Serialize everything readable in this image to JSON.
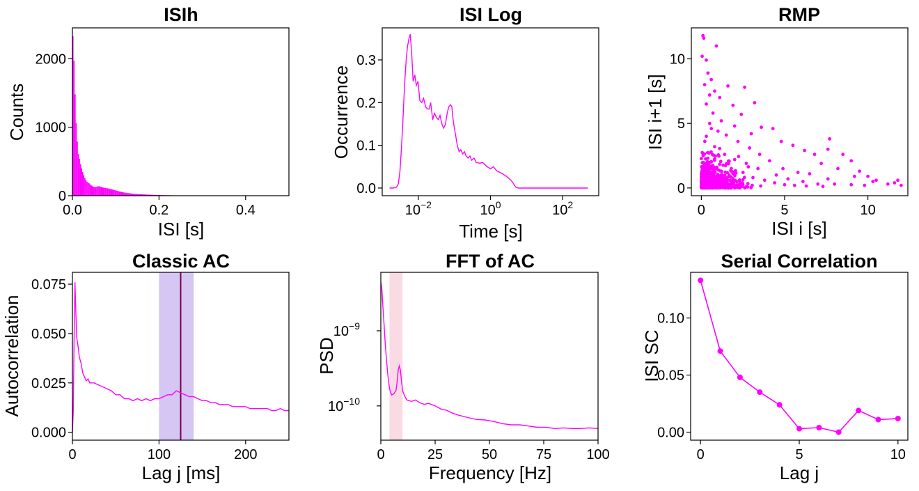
{
  "colors": {
    "magenta": "#ff00ff",
    "band_purple": "#c7b3ef",
    "band_line": "#7a0050",
    "band_pink": "#f9d3de"
  },
  "chart_data": [
    {
      "type": "bar",
      "title": "ISIh",
      "xlabel": "ISI [s]",
      "ylabel": "Counts",
      "xlim": [
        0,
        0.5
      ],
      "ylim": [
        0,
        2450
      ],
      "xticks": [
        "0.0",
        "0.2",
        "0.4"
      ],
      "yticks": [
        "0",
        "1000",
        "2000"
      ],
      "bin_width": 0.0025,
      "values": [
        2330,
        1970,
        1480,
        1060,
        790,
        610,
        540,
        460,
        400,
        345,
        300,
        260,
        230,
        205,
        190,
        180,
        165,
        150,
        140,
        130,
        128,
        125,
        130,
        135,
        140,
        132,
        128,
        122,
        118,
        115,
        112,
        110,
        108,
        105,
        100,
        96,
        92,
        88,
        84,
        80,
        75,
        70,
        66,
        62,
        58,
        55,
        52,
        48,
        45,
        43,
        40,
        38,
        36,
        34,
        32,
        30,
        28,
        27,
        26,
        25,
        24,
        23,
        22,
        21,
        20,
        19,
        19,
        18,
        17,
        16,
        16,
        15,
        14,
        14,
        13,
        12,
        12,
        11,
        11,
        10,
        10,
        9,
        9,
        9,
        8,
        8,
        8,
        7,
        7,
        7,
        6,
        6,
        6,
        6,
        5,
        5,
        5,
        5,
        5,
        4,
        4,
        4,
        4,
        4,
        4,
        3,
        3,
        3,
        3,
        3,
        3,
        3,
        3,
        3,
        2,
        2,
        2,
        2,
        2,
        2,
        2,
        2,
        2,
        2,
        2,
        2,
        2,
        2,
        2,
        2,
        2,
        2,
        2,
        2,
        2,
        2,
        2,
        2,
        2,
        2,
        2,
        2,
        2,
        2,
        2,
        2,
        2,
        2,
        2,
        2,
        2,
        2,
        2,
        2,
        2,
        2,
        2,
        2,
        2,
        2,
        2,
        2,
        2,
        2,
        2,
        2,
        2,
        2,
        2,
        2,
        2,
        2,
        2,
        2,
        2,
        2,
        2,
        2,
        2,
        2,
        2,
        2,
        2,
        2,
        2,
        2,
        2,
        2,
        2,
        2,
        2,
        2,
        2,
        2,
        2,
        2,
        2,
        2,
        2,
        2
      ]
    },
    {
      "type": "line",
      "title": "ISI Log",
      "xlabel": "Time [s]",
      "ylabel": "Occurrence",
      "xscale": "log",
      "xlim": [
        0.001,
        1000
      ],
      "ylim": [
        -0.018,
        0.375
      ],
      "xticks": [
        {
          "v": 0.01,
          "label": "10",
          "exp": "−2"
        },
        {
          "v": 1,
          "label": "10",
          "exp": "0"
        },
        {
          "v": 100,
          "label": "10",
          "exp": "2"
        }
      ],
      "yticks": [
        "0.0",
        "0.1",
        "0.2",
        "0.3"
      ],
      "x": [
        0.0016,
        0.002,
        0.0025,
        0.0028,
        0.0031,
        0.0034,
        0.0037,
        0.004,
        0.0043,
        0.0046,
        0.005,
        0.0055,
        0.006,
        0.0066,
        0.0072,
        0.008,
        0.0088,
        0.0098,
        0.011,
        0.0125,
        0.014,
        0.016,
        0.018,
        0.02,
        0.022,
        0.025,
        0.028,
        0.032,
        0.036,
        0.04,
        0.045,
        0.05,
        0.056,
        0.063,
        0.07,
        0.078,
        0.085,
        0.092,
        0.1,
        0.11,
        0.12,
        0.135,
        0.15,
        0.17,
        0.19,
        0.21,
        0.24,
        0.27,
        0.3,
        0.35,
        0.4,
        0.5,
        0.6,
        0.8,
        1.0,
        1.2,
        1.5,
        2.0,
        2.5,
        3.0,
        3.5,
        4.0,
        4.5,
        5.0,
        6.0,
        7.0,
        10.0,
        20,
        50,
        100,
        200,
        500
      ],
      "y": [
        0.0,
        0.0,
        0.002,
        0.01,
        0.04,
        0.09,
        0.15,
        0.21,
        0.26,
        0.3,
        0.33,
        0.35,
        0.36,
        0.31,
        0.25,
        0.265,
        0.24,
        0.25,
        0.205,
        0.2,
        0.21,
        0.19,
        0.185,
        0.185,
        0.2,
        0.16,
        0.175,
        0.165,
        0.16,
        0.17,
        0.15,
        0.14,
        0.148,
        0.175,
        0.19,
        0.195,
        0.19,
        0.16,
        0.14,
        0.12,
        0.1,
        0.085,
        0.09,
        0.08,
        0.085,
        0.075,
        0.07,
        0.075,
        0.065,
        0.07,
        0.06,
        0.058,
        0.06,
        0.05,
        0.045,
        0.05,
        0.04,
        0.035,
        0.03,
        0.025,
        0.02,
        0.015,
        0.008,
        0.002,
        0.0,
        0.0,
        0.0,
        0.0,
        0.0,
        0.0,
        0.0,
        0.0
      ]
    },
    {
      "type": "scatter",
      "title": "RMP",
      "xlabel": "ISI i [s]",
      "ylabel": "ISI i+1 [s]",
      "xlim": [
        -0.6,
        12.4
      ],
      "ylim": [
        -0.6,
        12.4
      ],
      "xticks": [
        "0",
        "5",
        "10"
      ],
      "yticks": [
        "0",
        "5",
        "10"
      ],
      "points": [
        [
          0.1,
          11.8
        ],
        [
          0.15,
          11.6
        ],
        [
          0.9,
          11.0
        ],
        [
          0.05,
          10.2
        ],
        [
          0.3,
          9.9
        ],
        [
          0.4,
          8.9
        ],
        [
          0.6,
          8.4
        ],
        [
          0.2,
          8.0
        ],
        [
          1.6,
          7.9
        ],
        [
          2.6,
          7.8
        ],
        [
          0.8,
          7.5
        ],
        [
          3.2,
          6.6
        ],
        [
          1.1,
          7.0
        ],
        [
          0.5,
          7.2
        ],
        [
          1.9,
          6.4
        ],
        [
          0.3,
          6.5
        ],
        [
          4.3,
          4.6
        ],
        [
          3.6,
          4.7
        ],
        [
          7.7,
          3.8
        ],
        [
          7.6,
          3.0
        ],
        [
          9.0,
          2.1
        ],
        [
          8.5,
          2.6
        ],
        [
          2.4,
          5.7
        ],
        [
          0.7,
          5.8
        ],
        [
          1.2,
          5.2
        ],
        [
          0.5,
          5.0
        ],
        [
          2.0,
          4.8
        ],
        [
          3.0,
          4.2
        ],
        [
          4.8,
          3.6
        ],
        [
          5.5,
          3.3
        ],
        [
          6.2,
          2.9
        ],
        [
          6.8,
          2.6
        ],
        [
          7.2,
          1.9
        ],
        [
          8.2,
          1.5
        ],
        [
          9.5,
          1.3
        ],
        [
          10.0,
          0.9
        ],
        [
          10.5,
          0.6
        ],
        [
          11.2,
          0.3
        ],
        [
          11.6,
          0.4
        ],
        [
          11.8,
          0.6
        ],
        [
          10.3,
          0.5
        ],
        [
          9.2,
          0.9
        ],
        [
          7.6,
          0.7
        ],
        [
          6.5,
          1.1
        ],
        [
          5.8,
          1.2
        ],
        [
          4.9,
          1.5
        ],
        [
          4.1,
          2.1
        ],
        [
          3.5,
          2.6
        ],
        [
          2.9,
          3.1
        ],
        [
          2.2,
          3.6
        ],
        [
          1.5,
          4.1
        ],
        [
          1.0,
          4.4
        ],
        [
          0.6,
          4.6
        ],
        [
          0.3,
          4.0
        ],
        [
          0.8,
          3.2
        ],
        [
          1.4,
          2.6
        ],
        [
          2.0,
          2.2
        ],
        [
          2.7,
          1.9
        ],
        [
          3.4,
          1.5
        ],
        [
          4.5,
          1.0
        ],
        [
          5.2,
          0.7
        ],
        [
          6.1,
          0.5
        ],
        [
          7.0,
          0.3
        ],
        [
          8.0,
          0.3
        ],
        [
          9.0,
          0.25
        ],
        [
          9.8,
          0.2
        ],
        [
          12.0,
          0.2
        ],
        [
          1.8,
          1.5
        ],
        [
          2.5,
          1.2
        ],
        [
          3.1,
          0.8
        ],
        [
          3.8,
          0.6
        ],
        [
          4.4,
          0.4
        ],
        [
          5.0,
          0.25
        ],
        [
          5.6,
          0.2
        ],
        [
          6.3,
          0.15
        ],
        [
          7.3,
          0.12
        ]
      ]
    },
    {
      "type": "line",
      "title": "Classic AC",
      "xlabel": "Lag j [ms]",
      "ylabel": "Autocorrelation",
      "xlim": [
        0,
        250
      ],
      "ylim": [
        -0.004,
        0.081
      ],
      "xticks": [
        "0",
        "100",
        "200"
      ],
      "yticks": [
        "0.000",
        "0.025",
        "0.050",
        "0.075"
      ],
      "band": [
        100,
        140
      ],
      "marker_x": 125,
      "x": [
        0,
        1,
        2,
        3,
        4,
        5,
        6,
        7,
        8,
        10,
        12,
        14,
        16,
        18,
        20,
        25,
        30,
        35,
        40,
        45,
        50,
        55,
        60,
        65,
        70,
        75,
        80,
        85,
        90,
        95,
        100,
        105,
        110,
        115,
        120,
        125,
        130,
        135,
        140,
        145,
        150,
        155,
        160,
        165,
        170,
        175,
        180,
        185,
        190,
        195,
        200,
        205,
        210,
        215,
        220,
        225,
        230,
        235,
        240,
        245,
        250
      ],
      "y": [
        0.0,
        0.01,
        0.05,
        0.076,
        0.06,
        0.048,
        0.045,
        0.042,
        0.038,
        0.035,
        0.03,
        0.028,
        0.026,
        0.027,
        0.025,
        0.025,
        0.024,
        0.023,
        0.022,
        0.021,
        0.019,
        0.019,
        0.017,
        0.017,
        0.016,
        0.017,
        0.016,
        0.017,
        0.016,
        0.017,
        0.017,
        0.018,
        0.019,
        0.019,
        0.021,
        0.02,
        0.019,
        0.018,
        0.018,
        0.017,
        0.016,
        0.016,
        0.015,
        0.015,
        0.014,
        0.014,
        0.014,
        0.013,
        0.013,
        0.013,
        0.013,
        0.012,
        0.012,
        0.012,
        0.012,
        0.012,
        0.011,
        0.011,
        0.012,
        0.011,
        0.011
      ]
    },
    {
      "type": "line",
      "title": "FFT of AC",
      "xlabel": "Frequency [Hz]",
      "ylabel": "PSD",
      "yscale": "log",
      "xlim": [
        0,
        100
      ],
      "ylim": [
        3.5e-11,
        6e-09
      ],
      "xticks": [
        "0",
        "25",
        "50",
        "75",
        "100"
      ],
      "yticks": [
        {
          "v": 1e-09,
          "label": "10",
          "exp": "−9"
        },
        {
          "v": 1e-10,
          "label": "10",
          "exp": "−10"
        }
      ],
      "band": [
        4,
        10
      ],
      "x": [
        0,
        0.5,
        1,
        1.5,
        2,
        2.5,
        3,
        3.5,
        4,
        4.5,
        5,
        6,
        7,
        7.5,
        8,
        8.5,
        9,
        9.5,
        10,
        11,
        12,
        14,
        16,
        18,
        20,
        22,
        25,
        28,
        30,
        33,
        36,
        40,
        44,
        48,
        52,
        56,
        60,
        64,
        68,
        72,
        76,
        80,
        84,
        88,
        92,
        96,
        100
      ],
      "y": [
        4.5e-09,
        3.5e-09,
        2e-09,
        1.2e-09,
        7e-10,
        4.5e-10,
        3e-10,
        2.2e-10,
        1.7e-10,
        1.5e-10,
        1.4e-10,
        1.45e-10,
        1.6e-10,
        2.1e-10,
        3e-10,
        3.4e-10,
        3e-10,
        2.2e-10,
        1.6e-10,
        1.35e-10,
        1.2e-10,
        1.15e-10,
        1.2e-10,
        1.1e-10,
        1.05e-10,
        1.08e-10,
        1e-10,
        9e-11,
        8.8e-11,
        8e-11,
        7.5e-11,
        7e-11,
        6.6e-11,
        6.5e-11,
        6.2e-11,
        5.8e-11,
        5.6e-11,
        5.6e-11,
        5.4e-11,
        5.2e-11,
        5.2e-11,
        5e-11,
        5.1e-11,
        5e-11,
        5e-11,
        5.1e-11,
        5e-11
      ]
    },
    {
      "type": "line",
      "title": "Serial Correlation",
      "xlabel": "Lag j",
      "ylabel": "ISI SC",
      "markers": true,
      "xlim": [
        -0.5,
        10.5
      ],
      "ylim": [
        -0.007,
        0.14
      ],
      "xticks": [
        "0",
        "5",
        "10"
      ],
      "yticks": [
        "0.00",
        "0.05",
        "0.10"
      ],
      "x": [
        0,
        1,
        2,
        3,
        4,
        5,
        6,
        7,
        8,
        9,
        10
      ],
      "y": [
        0.133,
        0.071,
        0.048,
        0.035,
        0.024,
        0.003,
        0.004,
        0.0,
        0.019,
        0.011,
        0.012
      ]
    }
  ]
}
